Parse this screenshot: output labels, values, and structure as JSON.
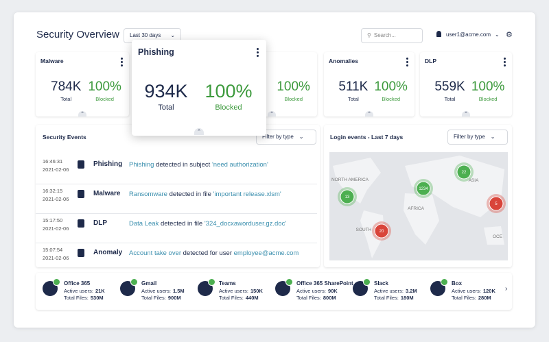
{
  "header": {
    "title": "Security Overview",
    "date_filter": "Last 30 days",
    "search_placeholder": "Search...",
    "user": "user1@acme.com"
  },
  "cards": [
    {
      "title": "Malware",
      "total": "784K",
      "total_label": "Total",
      "blocked": "100%",
      "blocked_label": "Blocked"
    },
    {
      "blocked": "100%",
      "blocked_label": "Blocked"
    },
    {
      "title": "Anomalies",
      "total": "511K",
      "total_label": "Total",
      "blocked": "100%",
      "blocked_label": "Blocked"
    },
    {
      "title": "DLP",
      "total": "559K",
      "total_label": "Total",
      "blocked": "100%",
      "blocked_label": "Blocked"
    }
  ],
  "popup": {
    "title": "Phishing",
    "total": "934K",
    "total_label": "Total",
    "blocked": "100%",
    "blocked_label": "Blocked"
  },
  "events_panel": {
    "title": "Security Events",
    "filter": "Filter by type",
    "events": [
      {
        "time": "16:46:31",
        "date": "2021-02-06",
        "type": "Phishing",
        "message": [
          {
            "text": "Phishing",
            "link": true
          },
          {
            "text": " detected in subject "
          },
          {
            "text": "'need authorization'",
            "link": true
          }
        ]
      },
      {
        "time": "16:32:15",
        "date": "2021-02-06",
        "type": "Malware",
        "message": [
          {
            "text": "Ransomware",
            "link": true
          },
          {
            "text": " detected in file "
          },
          {
            "text": "'important release.xlsm'",
            "link": true
          }
        ]
      },
      {
        "time": "15:17:50",
        "date": "2021-02-06",
        "type": "DLP",
        "message": [
          {
            "text": "Data Leak",
            "link": true
          },
          {
            "text": " detected in file "
          },
          {
            "text": "'324_docxaworduser.gz.doc'",
            "link": true
          }
        ]
      },
      {
        "time": "15:07:54",
        "date": "2021-02-06",
        "type": "Anomaly",
        "message": [
          {
            "text": "Account take over",
            "link": true
          },
          {
            "text": " detected for user "
          },
          {
            "text": "employee@acme.com",
            "link": true
          }
        ]
      }
    ]
  },
  "login_panel": {
    "title": "Login events - Last 7 days",
    "filter": "Filter by type",
    "map_labels": [
      "NORTH AMERICA",
      "ASIA",
      "AFRICA",
      "SOUTH",
      "OCE"
    ],
    "clusters": [
      {
        "value": 13,
        "color": "#4caf50"
      },
      {
        "value": 1234,
        "color": "#4caf50"
      },
      {
        "value": 22,
        "color": "#4caf50"
      },
      {
        "value": 5,
        "color": "#d9443a"
      },
      {
        "value": 20,
        "color": "#d9443a"
      }
    ]
  },
  "apps": {
    "active_label": "Active users:",
    "files_label": "Total Files:",
    "items": [
      {
        "name": "Office 365",
        "active": "21K",
        "files": "530M"
      },
      {
        "name": "Gmail",
        "active": "1.5M",
        "files": "900M"
      },
      {
        "name": "Teams",
        "active": "150K",
        "files": "440M"
      },
      {
        "name": "Office 365 SharePoint",
        "active": "90K",
        "files": "800M"
      },
      {
        "name": "Slack",
        "active": "3.2M",
        "files": "180M"
      },
      {
        "name": "Box",
        "active": "120K",
        "files": "280M"
      }
    ]
  }
}
